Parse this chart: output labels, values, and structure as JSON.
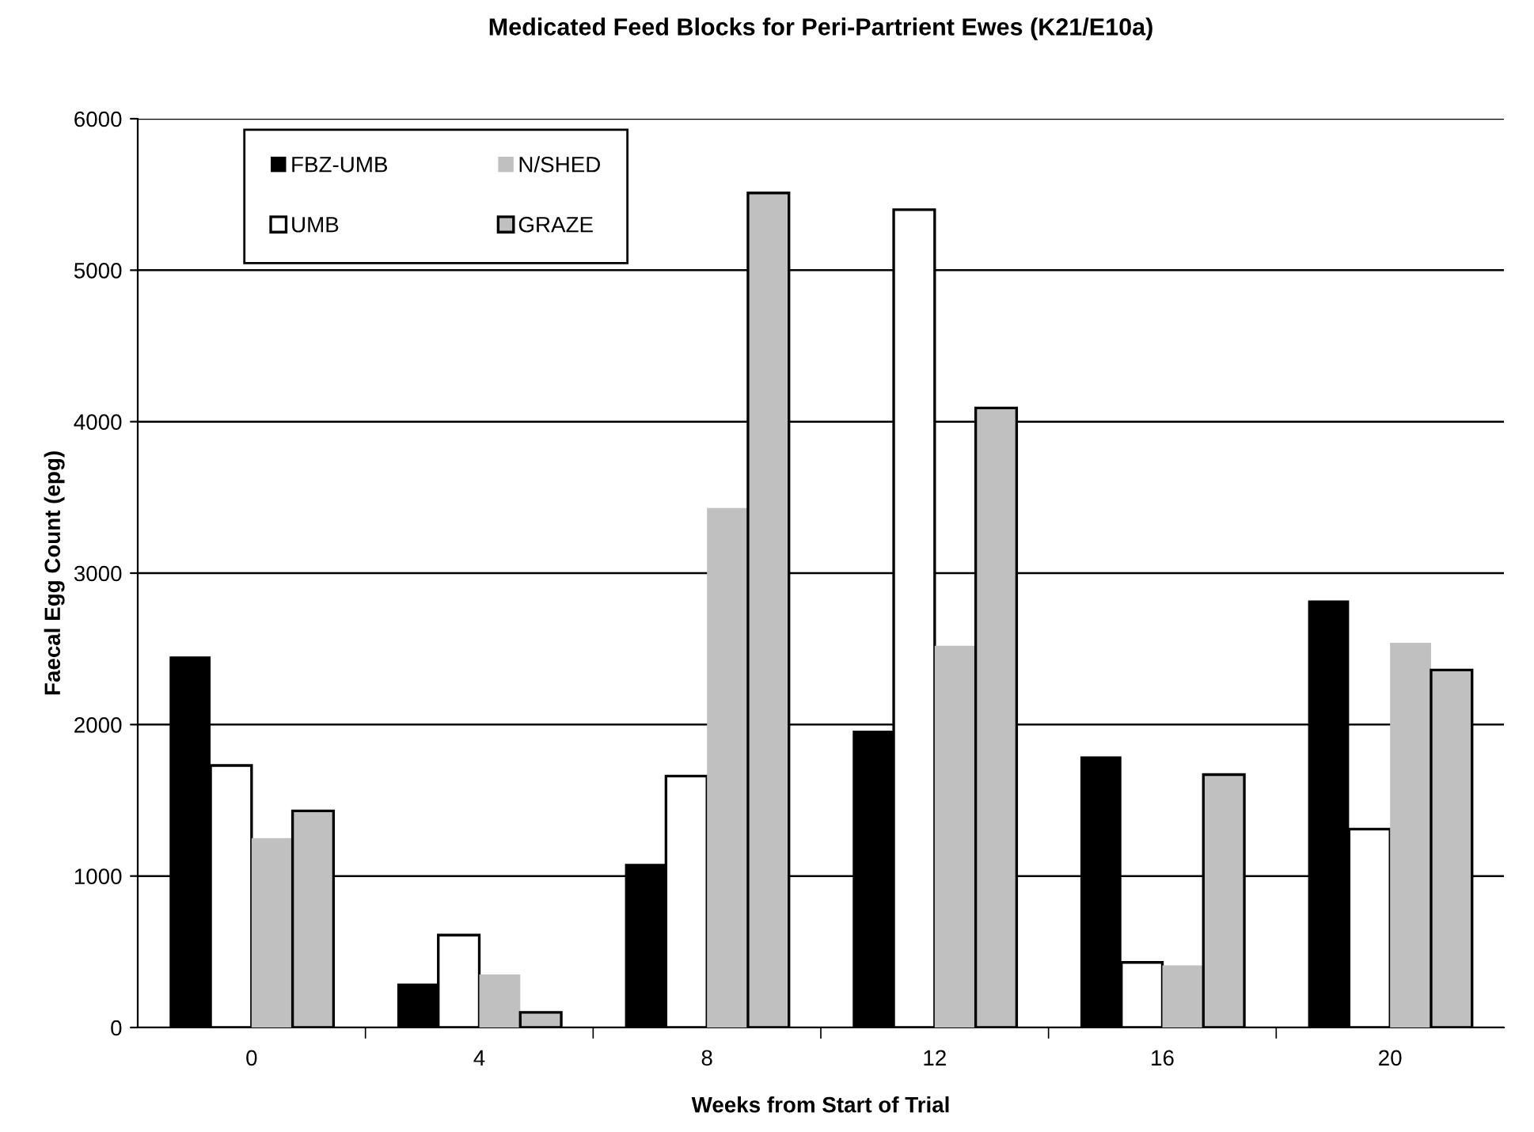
{
  "chart_data": {
    "type": "bar",
    "title": "Medicated Feed Blocks for Peri-Partrient Ewes (K21/E10a)",
    "xlabel": "Weeks from Start of Trial",
    "ylabel": "Faecal Egg Count (epg)",
    "categories": [
      "0",
      "4",
      "8",
      "12",
      "16",
      "20"
    ],
    "series": [
      {
        "name": "FBZ-UMB",
        "color": "#000000",
        "values": [
          2450,
          290,
          1080,
          1960,
          1790,
          2820
        ]
      },
      {
        "name": "UMB",
        "color": "#ffffff",
        "values": [
          1730,
          610,
          1660,
          5400,
          430,
          1310
        ]
      },
      {
        "name": "N/SHED",
        "color": "#c0c0c0",
        "values": [
          1250,
          350,
          3430,
          2520,
          410,
          2540
        ]
      },
      {
        "name": "GRAZE",
        "color": "#c0c0c0",
        "values": [
          1430,
          100,
          5510,
          4090,
          1670,
          2360
        ]
      }
    ],
    "ylim": [
      0,
      6000
    ],
    "yticks": [
      0,
      1000,
      2000,
      3000,
      4000,
      5000,
      6000
    ],
    "grid": "y",
    "legend": "top left"
  }
}
